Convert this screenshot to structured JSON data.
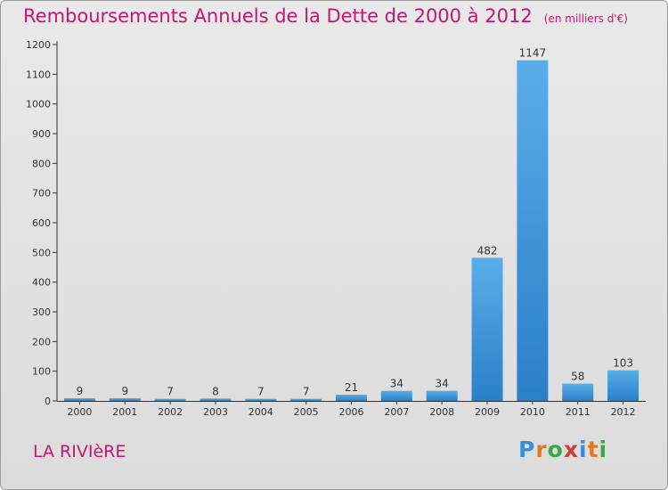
{
  "header": {
    "title": "Remboursements Annuels de la Dette de 2000 à 2012",
    "unit": "(en milliers d'€)"
  },
  "footer": {
    "commune": "LA RIVIèRE",
    "logo": [
      "P",
      "r",
      "o",
      "x",
      "i",
      "t",
      "i"
    ],
    "logo_colors": [
      "#3a8fd8",
      "#e07a1f",
      "#3aa84a",
      "#d63a3a",
      "#3a8fd8",
      "#e07a1f",
      "#3aa84a"
    ]
  },
  "colors": {
    "title": "#c2186d",
    "bar_light": "#5aaee8",
    "bar_dark": "#2a7fc8"
  },
  "chart_data": {
    "type": "bar",
    "categories": [
      "2000",
      "2001",
      "2002",
      "2003",
      "2004",
      "2005",
      "2006",
      "2007",
      "2008",
      "2009",
      "2010",
      "2011",
      "2012"
    ],
    "values": [
      9,
      9,
      7,
      8,
      7,
      7,
      21,
      34,
      34,
      482,
      1147,
      58,
      103
    ],
    "y_ticks": [
      0,
      100,
      200,
      300,
      400,
      500,
      600,
      700,
      800,
      900,
      1000,
      1100,
      1200
    ],
    "ylim": [
      0,
      1200
    ],
    "title": "Remboursements Annuels de la Dette de 2000 à 2012",
    "xlabel": "",
    "ylabel": "",
    "grid": false,
    "legend": "none"
  }
}
